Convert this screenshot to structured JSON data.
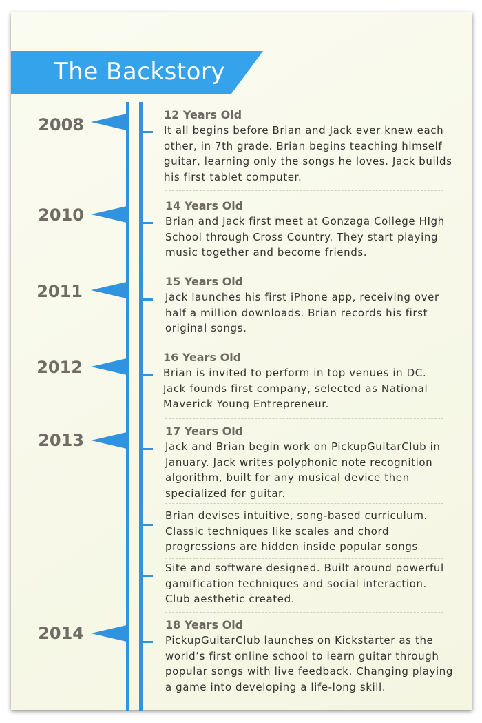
{
  "banner": {
    "title": "The Backstory",
    "color": "#35a3ec"
  },
  "timeline": {
    "rail_color": "#2f93e0",
    "entries": [
      {
        "year": "2008",
        "age": "12 Years Old",
        "text": "It all begins before Brian and Jack ever knew each other, in 7th grade. Brian begins teaching himself guitar, learning only the songs he loves. Jack builds his first tablet computer."
      },
      {
        "year": "2010",
        "age": "14 Years Old",
        "text": "Brian and Jack first meet at Gonzaga College HIgh School through Cross Country. They start playing music together and become friends."
      },
      {
        "year": "2011",
        "age": "15 Years Old",
        "text": "Jack launches his first iPhone app, receiving over half a million downloads. Brian records his first original songs."
      },
      {
        "year": "2012",
        "age": "16 Years Old",
        "text": "Brian is invited to perform in top venues in DC. Jack founds first company, selected as National Maverick Young Entrepreneur."
      },
      {
        "year": "2013",
        "age": "17 Years Old",
        "text": "Jack and Brian begin work on PickupGuitarClub in January. Jack writes polyphonic note recognition algorithm, built for any musical device then specialized for guitar."
      },
      {
        "year": "",
        "age": "",
        "text": "Brian devises intuitive, song-based curriculum. Classic techniques like scales and chord progressions are hidden inside popular songs"
      },
      {
        "year": "",
        "age": "",
        "text": "Site and software designed. Built around powerful gamification techniques and social interaction. Club aesthetic created."
      },
      {
        "year": "2014",
        "age": "18 Years Old",
        "text": "PickupGuitarClub launches on Kickstarter as the world’s first online school to learn guitar through popular songs with live feedback. Changing playing a game into developing a life-long skill."
      }
    ]
  }
}
